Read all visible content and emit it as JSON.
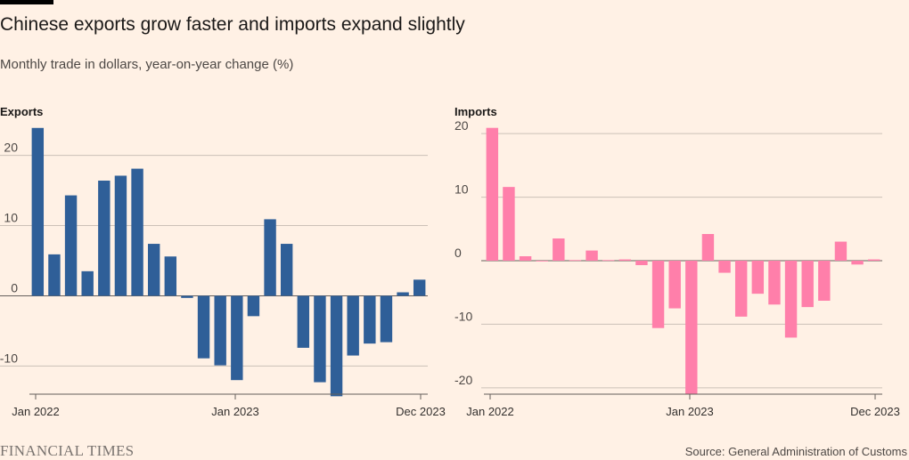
{
  "header": {
    "title": "Chinese exports grow faster and imports expand slightly",
    "subtitle": "Monthly trade in dollars, year-on-year change (%)"
  },
  "footer": {
    "logo": "FINANCIAL TIMES",
    "source": "Source: General Administration of Customs"
  },
  "chart_data": [
    {
      "type": "bar",
      "title": "Exports",
      "color": "#2f5f98",
      "ylim": [
        -14,
        24
      ],
      "yticks": [
        20,
        10,
        0,
        -10
      ],
      "ytick_labels": [
        "20",
        "10",
        "0",
        "-10"
      ],
      "xtick_labels": [
        "Jan 2022",
        "Jan 2023",
        "Dec 2023"
      ],
      "categories": [
        "2022-01",
        "2022-02",
        "2022-03",
        "2022-04",
        "2022-05",
        "2022-06",
        "2022-07",
        "2022-08",
        "2022-09",
        "2022-10",
        "2022-11",
        "2022-12",
        "2023-01",
        "2023-02",
        "2023-03",
        "2023-04",
        "2023-05",
        "2023-06",
        "2023-07",
        "2023-08",
        "2023-09",
        "2023-10",
        "2023-11",
        "2023-12"
      ],
      "values": [
        23.9,
        5.9,
        14.3,
        3.5,
        16.4,
        17.1,
        18.1,
        7.4,
        5.6,
        -0.3,
        -8.9,
        -9.9,
        -12.0,
        -2.9,
        10.9,
        7.4,
        -7.4,
        -12.3,
        -14.3,
        -8.5,
        -6.8,
        -6.6,
        0.5,
        2.3
      ]
    },
    {
      "type": "bar",
      "title": "Imports",
      "color": "#ff7faa",
      "ylim": [
        -21,
        21
      ],
      "yticks": [
        20,
        10,
        0,
        -10,
        -20
      ],
      "ytick_labels": [
        "20",
        "10",
        "0",
        "-10",
        "-20"
      ],
      "xtick_labels": [
        "Jan 2022",
        "Jan 2023",
        "Dec 2023"
      ],
      "categories": [
        "2022-01",
        "2022-02",
        "2022-03",
        "2022-04",
        "2022-05",
        "2022-06",
        "2022-07",
        "2022-08",
        "2022-09",
        "2022-10",
        "2022-11",
        "2022-12",
        "2023-01",
        "2023-02",
        "2023-03",
        "2023-04",
        "2023-05",
        "2023-06",
        "2023-07",
        "2023-08",
        "2023-09",
        "2023-10",
        "2023-11",
        "2023-12"
      ],
      "values": [
        20.9,
        11.6,
        0.7,
        0.0,
        3.5,
        0.1,
        1.6,
        0.1,
        0.2,
        -0.7,
        -10.6,
        -7.5,
        -21.0,
        4.2,
        -1.9,
        -8.8,
        -5.2,
        -6.9,
        -12.1,
        -7.3,
        -6.3,
        3.0,
        -0.6,
        0.2
      ]
    }
  ]
}
